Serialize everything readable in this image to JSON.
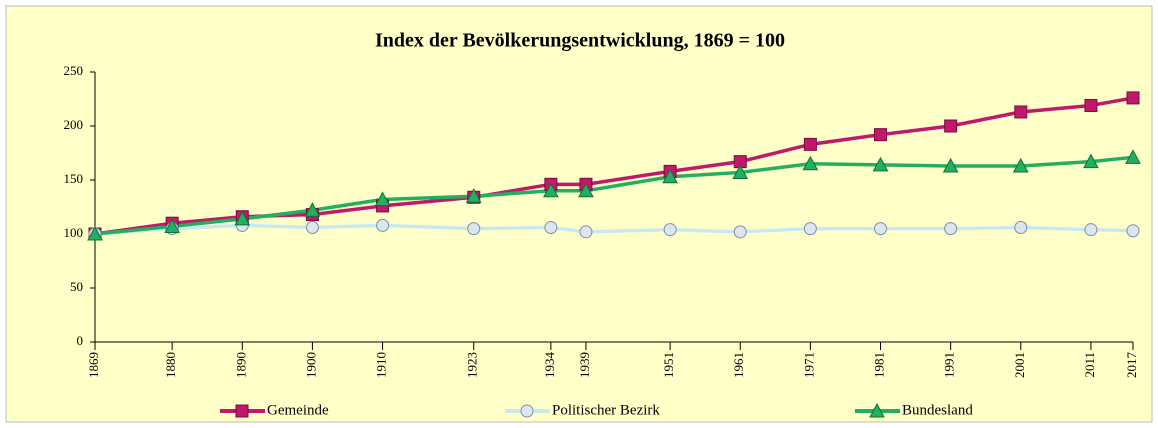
{
  "chart_data": {
    "type": "line",
    "title": "Index der Bevölkerungsentwicklung, 1869 = 100",
    "x": [
      1869,
      1880,
      1890,
      1900,
      1910,
      1923,
      1934,
      1939,
      1951,
      1961,
      1971,
      1981,
      1991,
      2001,
      2011,
      2017
    ],
    "series": [
      {
        "name": "Gemeinde",
        "color": "#c0186a",
        "marker": "square",
        "values": [
          100,
          110,
          116,
          118,
          126,
          134,
          146,
          146,
          158,
          167,
          183,
          192,
          200,
          213,
          219,
          226
        ]
      },
      {
        "name": "Politischer Bezirk",
        "color": "#c8e8f4",
        "marker": "circle",
        "values": [
          100,
          105,
          108,
          106,
          108,
          105,
          106,
          102,
          104,
          102,
          105,
          105,
          105,
          106,
          104,
          103
        ]
      },
      {
        "name": "Bundesland",
        "color": "#22b060",
        "marker": "triangle",
        "values": [
          100,
          107,
          114,
          122,
          132,
          135,
          140,
          140,
          153,
          157,
          165,
          164,
          163,
          163,
          167,
          171
        ]
      }
    ],
    "xlim": [
      1869,
      2017
    ],
    "xticks": [
      1869,
      1880,
      1890,
      1900,
      1910,
      1923,
      1934,
      1939,
      1951,
      1961,
      1971,
      1981,
      1991,
      2001,
      2011,
      2017
    ],
    "ylim": [
      0,
      250
    ],
    "yticks": [
      0,
      50,
      100,
      150,
      200,
      250
    ],
    "grid": false,
    "legend": "bottom"
  }
}
